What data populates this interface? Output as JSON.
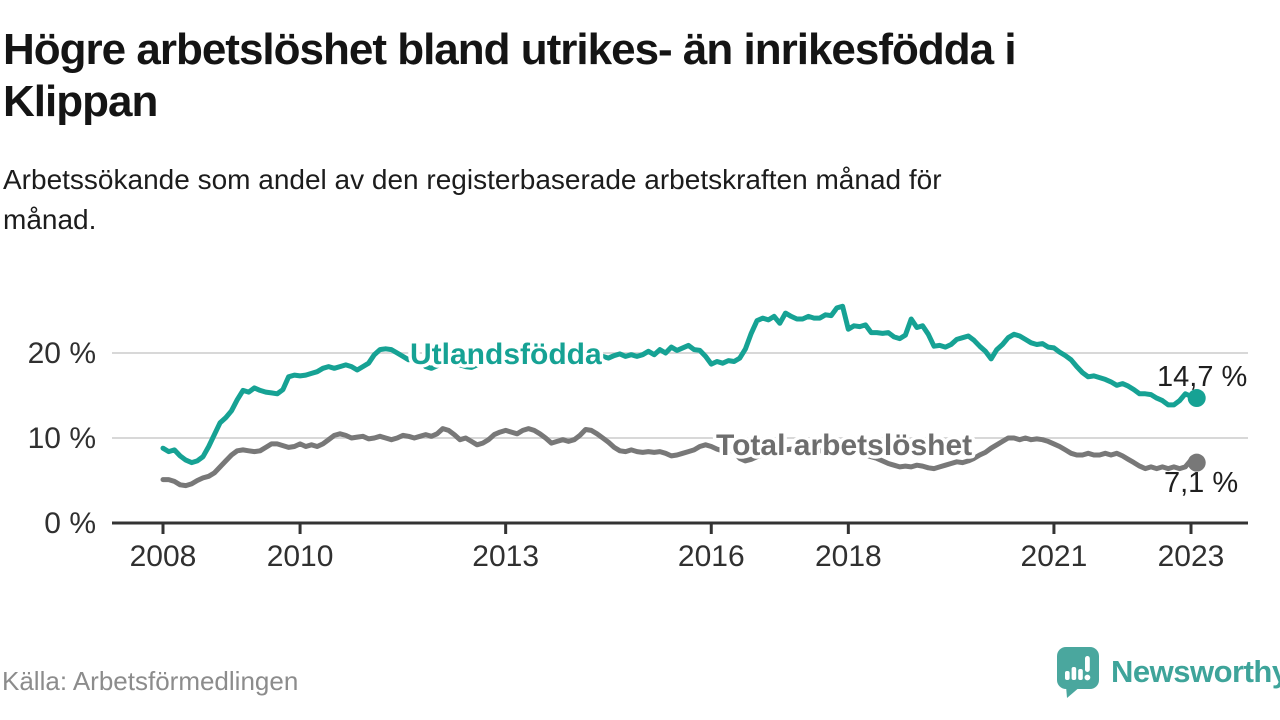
{
  "page": {
    "title_lines": [
      "Högre arbetslöshet bland utrikes- än inrikesfödda i",
      "Klippan"
    ],
    "subtitle_lines": [
      "Arbetssökande som andel av den registerbaserade arbetskraften månad för",
      "månad."
    ],
    "source": "Källa: Arbetsförmedlingen",
    "brand": "Newsworthy"
  },
  "colors": {
    "teal_series": "#16a294",
    "gray_series": "#787878",
    "gray_label": "#6e6e6e",
    "annotation_text": "#1f1f1f",
    "grid": "#d8d8d8",
    "axis": "#333333",
    "logo_teal": "#4aa79e"
  },
  "chart_data": {
    "type": "line",
    "title": "Högre arbetslöshet bland utrikes- än inrikesfödda i Klippan",
    "subtitle": "Arbetssökande som andel av den registerbaserade arbetskraften månad för månad.",
    "x_unit": "month",
    "x_start": "2008-01",
    "x_end": "2023-02",
    "grid": "horizontal",
    "legend": "inline-labels",
    "y_axis": {
      "range": [
        0,
        27
      ],
      "ticks": [
        {
          "value": 0,
          "label": "0 %"
        },
        {
          "value": 10,
          "label": "10 %"
        },
        {
          "value": 20,
          "label": "20 %"
        }
      ]
    },
    "x_axis": {
      "ticks": [
        {
          "label": "2008",
          "month_index": 0
        },
        {
          "label": "2010",
          "month_index": 24
        },
        {
          "label": "2013",
          "month_index": 60
        },
        {
          "label": "2016",
          "month_index": 96
        },
        {
          "label": "2018",
          "month_index": 120
        },
        {
          "label": "2021",
          "month_index": 156
        },
        {
          "label": "2023",
          "month_index": 180
        }
      ]
    },
    "series": [
      {
        "name": "Utlandsfödda",
        "color": "#16a294",
        "label_color": "#16a294",
        "end_label": "14,7 %",
        "values": [
          8.8,
          8.4,
          8.6,
          7.9,
          7.4,
          7.1,
          7.3,
          7.8,
          9.0,
          10.4,
          11.8,
          12.4,
          13.2,
          14.5,
          15.6,
          15.4,
          15.9,
          15.6,
          15.4,
          15.3,
          15.2,
          15.7,
          17.2,
          17.4,
          17.3,
          17.4,
          17.6,
          17.8,
          18.2,
          18.4,
          18.2,
          18.4,
          18.6,
          18.4,
          18.0,
          18.4,
          18.8,
          19.8,
          20.4,
          20.5,
          20.4,
          20.0,
          19.6,
          19.2,
          19.4,
          19.0,
          18.4,
          18.2,
          18.5,
          18.8,
          19.1,
          18.9,
          18.6,
          18.4,
          18.3,
          18.6,
          18.9,
          19.2,
          19.0,
          18.8,
          19.0,
          19.3,
          19.1,
          18.9,
          19.2,
          19.0,
          18.8,
          19.1,
          19.4,
          19.2,
          19.5,
          19.3,
          19.5,
          19.7,
          19.4,
          19.6,
          19.8,
          19.6,
          19.4,
          19.7,
          19.9,
          19.6,
          19.8,
          19.6,
          19.8,
          20.2,
          19.8,
          20.4,
          20.0,
          20.7,
          20.3,
          20.6,
          20.9,
          20.4,
          20.3,
          19.6,
          18.7,
          19.0,
          18.8,
          19.1,
          19.0,
          19.4,
          20.5,
          22.3,
          23.8,
          24.1,
          23.9,
          24.3,
          23.5,
          24.7,
          24.3,
          24.0,
          24.0,
          24.3,
          24.1,
          24.1,
          24.5,
          24.4,
          25.3,
          25.5,
          22.8,
          23.2,
          23.1,
          23.3,
          22.4,
          22.4,
          22.3,
          22.4,
          21.9,
          21.7,
          22.1,
          24.0,
          23.0,
          23.2,
          22.2,
          20.8,
          20.9,
          20.7,
          21.0,
          21.6,
          21.8,
          22.0,
          21.5,
          20.8,
          20.2,
          19.3,
          20.4,
          21.0,
          21.8,
          22.2,
          22.0,
          21.6,
          21.2,
          21.0,
          21.1,
          20.7,
          20.6,
          20.1,
          19.7,
          19.2,
          18.4,
          17.7,
          17.2,
          17.3,
          17.1,
          16.9,
          16.6,
          16.2,
          16.4,
          16.1,
          15.7,
          15.2,
          15.2,
          15.1,
          14.7,
          14.4,
          13.9,
          13.9,
          14.4,
          15.2,
          14.9,
          14.7
        ]
      },
      {
        "name": "Total arbetslöshet",
        "color": "#787878",
        "label_color": "#6e6e6e",
        "end_label": "7,1 %",
        "values": [
          5.1,
          5.1,
          4.9,
          4.5,
          4.4,
          4.6,
          5.0,
          5.3,
          5.5,
          5.9,
          6.6,
          7.3,
          8.0,
          8.5,
          8.6,
          8.5,
          8.4,
          8.5,
          8.9,
          9.3,
          9.3,
          9.1,
          8.9,
          9.0,
          9.3,
          9.0,
          9.2,
          9.0,
          9.3,
          9.8,
          10.3,
          10.5,
          10.3,
          10.0,
          10.1,
          10.2,
          9.9,
          10.0,
          10.2,
          10.0,
          9.8,
          10.0,
          10.3,
          10.2,
          10.0,
          10.2,
          10.4,
          10.2,
          10.5,
          11.1,
          10.9,
          10.4,
          9.8,
          10.0,
          9.6,
          9.2,
          9.4,
          9.8,
          10.4,
          10.7,
          10.9,
          10.7,
          10.5,
          10.9,
          11.1,
          10.9,
          10.5,
          10.0,
          9.4,
          9.6,
          9.8,
          9.6,
          9.8,
          10.3,
          11.0,
          10.9,
          10.5,
          10.0,
          9.5,
          8.9,
          8.5,
          8.4,
          8.6,
          8.4,
          8.3,
          8.4,
          8.3,
          8.4,
          8.2,
          7.9,
          8.0,
          8.2,
          8.4,
          8.6,
          9.0,
          9.2,
          9.0,
          8.7,
          8.5,
          8.6,
          8.4,
          7.6,
          7.3,
          7.5,
          7.8,
          8.0,
          8.2,
          8.4,
          8.5,
          8.6,
          8.7,
          8.5,
          8.4,
          8.5,
          8.6,
          8.5,
          8.4,
          8.5,
          8.6,
          8.5,
          8.4,
          8.3,
          8.2,
          8.0,
          7.8,
          7.6,
          7.3,
          7.0,
          6.8,
          6.6,
          6.7,
          6.6,
          6.8,
          6.7,
          6.5,
          6.4,
          6.6,
          6.8,
          7.0,
          7.2,
          7.1,
          7.3,
          7.6,
          8.0,
          8.3,
          8.8,
          9.2,
          9.6,
          10.0,
          10.0,
          9.8,
          10.0,
          9.8,
          9.9,
          9.8,
          9.6,
          9.3,
          9.0,
          8.6,
          8.2,
          8.0,
          8.0,
          8.2,
          8.0,
          8.0,
          8.2,
          8.0,
          8.2,
          7.9,
          7.5,
          7.1,
          6.7,
          6.4,
          6.6,
          6.4,
          6.6,
          6.4,
          6.6,
          6.4,
          6.6,
          7.4,
          7.1
        ]
      }
    ]
  }
}
